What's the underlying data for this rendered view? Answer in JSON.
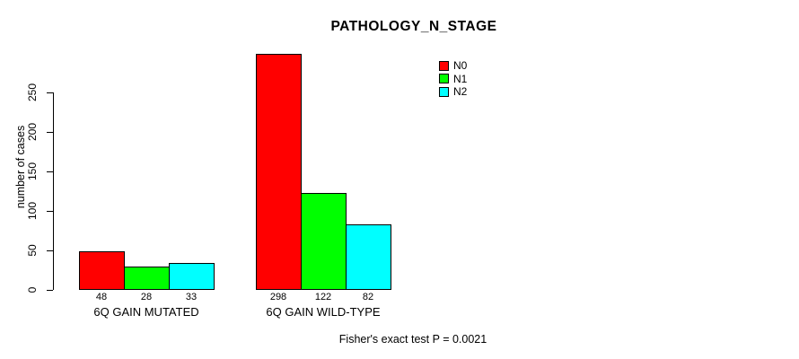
{
  "chart_data": {
    "type": "bar",
    "title": "PATHOLOGY_N_STAGE",
    "ylabel": "number of cases",
    "xlabel": "",
    "categories": [
      "6Q GAIN MUTATED",
      "6Q GAIN WILD-TYPE"
    ],
    "series": [
      {
        "name": "N0",
        "color": "#ff0000",
        "values": [
          48,
          298
        ]
      },
      {
        "name": "N1",
        "color": "#00ff00",
        "values": [
          28,
          122
        ]
      },
      {
        "name": "N2",
        "color": "#00ffff",
        "values": [
          33,
          82
        ]
      }
    ],
    "bar_value_labels": [
      [
        "48",
        "28",
        "33"
      ],
      [
        "298",
        "122",
        "82"
      ]
    ],
    "y_ticks": [
      0,
      50,
      100,
      150,
      200,
      250
    ],
    "ylim": [
      0,
      250
    ],
    "grid": false,
    "legend_position": "top-right",
    "footer": "Fisher's exact test P = 0.0021"
  }
}
